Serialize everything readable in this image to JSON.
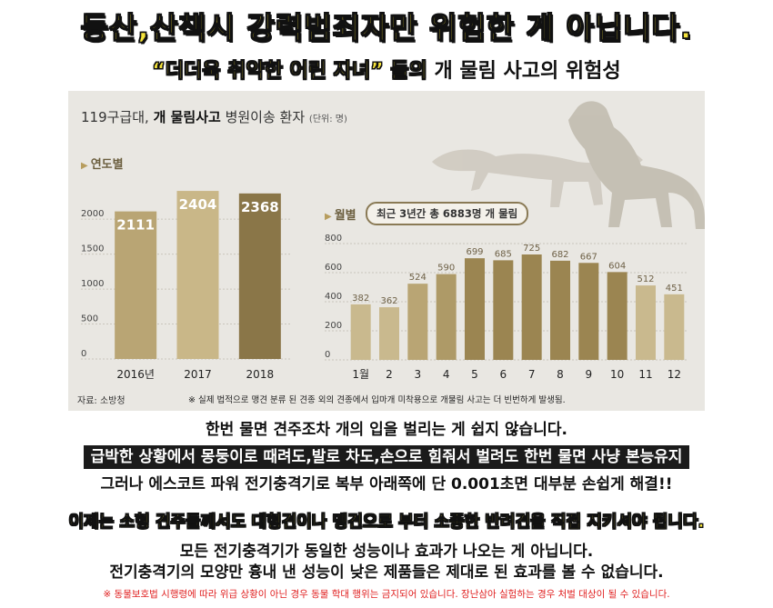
{
  "headline": "등산,산책시 강력범죄자만 위험한 게 아닙니다.",
  "subtitle": {
    "highlight": "“더더욱 취약한 어린 자녀” 들의",
    "rest": " 개 물림 사고의 위험성"
  },
  "infographic": {
    "title_prefix": "119구급대, ",
    "title_bold": "개 물림사고",
    "title_suffix": " 병원이송 환자 ",
    "unit": "(단위: 명)",
    "yearly_label": "연도별",
    "monthly_label": "월별",
    "monthly_badge": "최근 3년간 총 6883명 개 물림",
    "source": "자료: 소방청",
    "note": "※ 실제 법적으로 맹견 분류 된 견종 외의 견종에서 입마개 미착용으로 개물림 사고는 더 빈번하게 발생됨."
  },
  "chart_data": [
    {
      "type": "bar",
      "categories": [
        "2016년",
        "2017",
        "2018"
      ],
      "values": [
        2111,
        2404,
        2368
      ],
      "yticks": [
        0,
        500,
        1000,
        1500,
        2000
      ],
      "ylim": [
        0,
        2600
      ],
      "colors": [
        "#b9a574",
        "#c9b788",
        "#8a7648"
      ]
    },
    {
      "type": "bar",
      "categories": [
        "1월",
        "2",
        "3",
        "4",
        "5",
        "6",
        "7",
        "8",
        "9",
        "10",
        "11",
        "12"
      ],
      "values": [
        382,
        362,
        524,
        590,
        699,
        685,
        725,
        682,
        667,
        604,
        512,
        451
      ],
      "yticks": [
        0,
        200,
        400,
        600,
        800
      ],
      "ylim": [
        0,
        800
      ],
      "colors": [
        "#c9b98e",
        "#c9b98e",
        "#b9a574",
        "#ae9a67",
        "#9b8551",
        "#9b8551",
        "#9b8551",
        "#9b8551",
        "#9b8551",
        "#9b8551",
        "#c9b98e",
        "#c9b98e"
      ]
    }
  ],
  "lines": {
    "l1": "한번 물면 견주조차 개의 입을 벌리는 게 쉽지 않습니다.",
    "l2": "급박한 상황에서 몽둥이로 때려도,발로 차도,손으로 힘줘서 벌려도 한번 물면 사냥 본능유지",
    "l3": "그러나 에스코트 파워 전기충격기로 복부 아래쪽에 단 0.001초면 대부분 손쉽게 해결!!",
    "l4": "이제는 소형 견주들께서도 대형견이나 맹견으로 부터 소중한 반려견을 직접 지키셔야 됩니다.",
    "l5": "모든 전기충격기가 동일한 성능이나 효과가 나오는 게 아닙니다.",
    "l6": "전기충격기의 모양만 흉내 낸 성능이 낮은 제품들은 제대로 된 효과를 볼 수 없습니다.",
    "l7": "※ 동물보호법 시행령에 따라 위급 상황이 아닌 경우 동물 학대 행위는 금지되어 있습니다. 장난삼아 실험하는 경우 처벌 대상이 될 수 있습니다."
  }
}
